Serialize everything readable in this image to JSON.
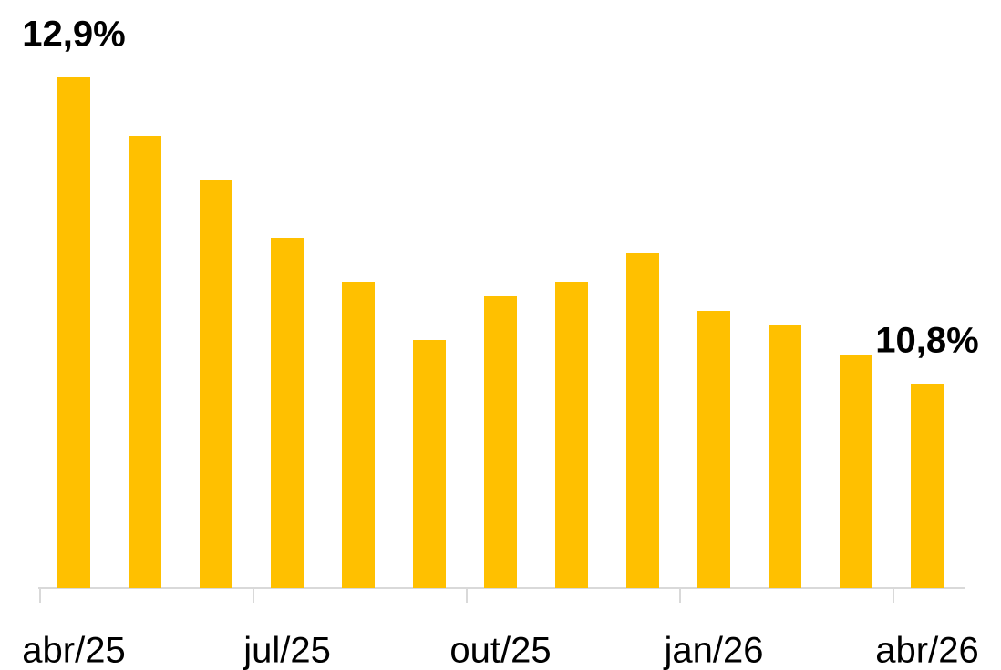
{
  "chart_data": {
    "type": "bar",
    "categories": [
      "abr/25",
      null,
      null,
      "jul/25",
      null,
      null,
      "out/25",
      null,
      null,
      "jan/26",
      null,
      null,
      "abr/26"
    ],
    "values": [
      12.9,
      12.5,
      12.2,
      11.8,
      11.5,
      11.1,
      11.4,
      11.5,
      11.7,
      11.3,
      11.2,
      11.0,
      10.8
    ],
    "value_labels": [
      "12,9%",
      null,
      null,
      null,
      null,
      null,
      null,
      null,
      null,
      null,
      null,
      null,
      "10,8%"
    ],
    "color": "#FFC000",
    "ylim": [
      9.4,
      13.0
    ]
  }
}
